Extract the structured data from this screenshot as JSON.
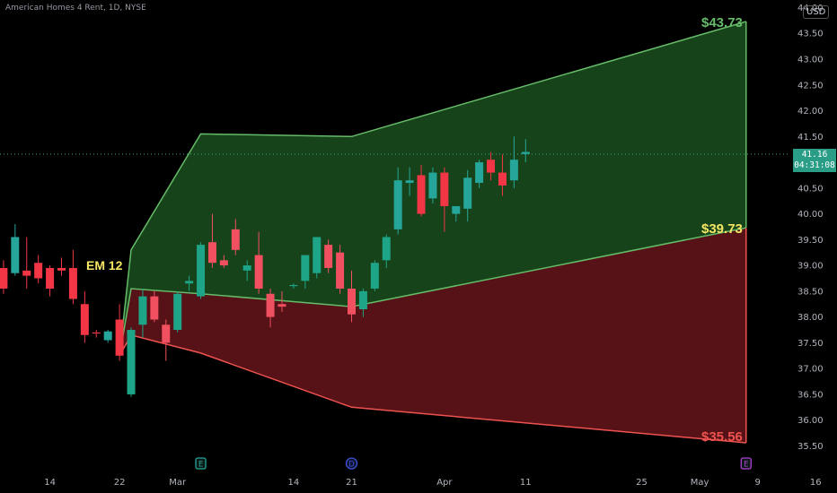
{
  "header": {
    "title": "American Homes 4 Rent, 1D, NYSE",
    "currency": "USD"
  },
  "price_tag": {
    "price": "41.16",
    "countdown": "04:31:08"
  },
  "event_markers": [
    {
      "label": "E",
      "date_index": 24,
      "color": "#26a69a"
    },
    {
      "label": "D",
      "date_index": 37,
      "color": "#3f51d8"
    },
    {
      "label": "E",
      "date_index": 71,
      "color": "#b13fd6"
    }
  ],
  "annotations": [
    {
      "text": "EM 12",
      "color": "#f5e663"
    },
    {
      "text": "$43.73",
      "color": "#66bb6a"
    },
    {
      "text": "$39.73",
      "color": "#f5e663"
    },
    {
      "text": "$35.56",
      "color": "#ef5350"
    }
  ],
  "chart_data": {
    "type": "candlestick",
    "title": "American Homes 4 Rent, 1D, NYSE",
    "y_axis": {
      "range": [
        35.2,
        44.2
      ],
      "ticks": [
        "44.00",
        "43.50",
        "43.00",
        "42.50",
        "42.00",
        "41.50",
        "41.00",
        "40.50",
        "40.00",
        "39.50",
        "39.00",
        "38.50",
        "38.00",
        "37.50",
        "37.00",
        "36.50",
        "36.00",
        "35.50"
      ]
    },
    "x_axis": {
      "range_index": [
        7,
        83
      ],
      "ticks": [
        {
          "label": "14",
          "index": 11
        },
        {
          "label": "22",
          "index": 17
        },
        {
          "label": "Mar",
          "index": 22
        },
        {
          "label": "14",
          "index": 32
        },
        {
          "label": "21",
          "index": 37
        },
        {
          "label": "Apr",
          "index": 45
        },
        {
          "label": "11",
          "index": 52
        },
        {
          "label": "25",
          "index": 62
        },
        {
          "label": "May",
          "index": 67
        },
        {
          "label": "9",
          "index": 72
        },
        {
          "label": "16",
          "index": 77
        }
      ]
    },
    "current_price": 41.16,
    "candles": [
      {
        "i": 7,
        "o": 38.95,
        "h": 39.1,
        "l": 38.45,
        "c": 38.55
      },
      {
        "i": 8,
        "o": 38.85,
        "h": 39.8,
        "l": 38.8,
        "c": 39.55
      },
      {
        "i": 9,
        "o": 38.9,
        "h": 39.55,
        "l": 38.55,
        "c": 38.8
      },
      {
        "i": 10,
        "o": 39.05,
        "h": 39.2,
        "l": 38.65,
        "c": 38.75
      },
      {
        "i": 11,
        "o": 38.95,
        "h": 39.0,
        "l": 38.4,
        "c": 38.55
      },
      {
        "i": 12,
        "o": 38.95,
        "h": 39.15,
        "l": 38.8,
        "c": 38.9
      },
      {
        "i": 13,
        "o": 38.95,
        "h": 39.3,
        "l": 38.25,
        "c": 38.35
      },
      {
        "i": 14,
        "o": 38.25,
        "h": 38.5,
        "l": 37.5,
        "c": 37.65
      },
      {
        "i": 15,
        "o": 37.7,
        "h": 37.75,
        "l": 37.6,
        "c": 37.68
      },
      {
        "i": 16,
        "o": 37.55,
        "h": 37.75,
        "l": 37.5,
        "c": 37.72
      },
      {
        "i": 17,
        "o": 37.95,
        "h": 38.25,
        "l": 37.15,
        "c": 37.25
      },
      {
        "i": 18,
        "o": 36.5,
        "h": 37.8,
        "l": 36.45,
        "c": 37.75
      },
      {
        "i": 19,
        "o": 37.85,
        "h": 38.55,
        "l": 37.6,
        "c": 38.4
      },
      {
        "i": 20,
        "o": 38.4,
        "h": 38.5,
        "l": 37.9,
        "c": 37.95
      },
      {
        "i": 21,
        "o": 37.85,
        "h": 37.95,
        "l": 37.15,
        "c": 37.5
      },
      {
        "i": 22,
        "o": 37.75,
        "h": 38.5,
        "l": 37.7,
        "c": 38.45
      },
      {
        "i": 23,
        "o": 38.65,
        "h": 38.8,
        "l": 38.5,
        "c": 38.7
      },
      {
        "i": 24,
        "o": 38.4,
        "h": 39.45,
        "l": 38.35,
        "c": 39.4
      },
      {
        "i": 25,
        "o": 39.45,
        "h": 40.0,
        "l": 38.95,
        "c": 39.05
      },
      {
        "i": 26,
        "o": 39.1,
        "h": 39.2,
        "l": 38.95,
        "c": 39.0
      },
      {
        "i": 27,
        "o": 39.7,
        "h": 39.9,
        "l": 39.2,
        "c": 39.3
      },
      {
        "i": 28,
        "o": 38.9,
        "h": 39.1,
        "l": 38.7,
        "c": 39.0
      },
      {
        "i": 29,
        "o": 39.2,
        "h": 39.65,
        "l": 38.45,
        "c": 38.55
      },
      {
        "i": 30,
        "o": 38.45,
        "h": 38.55,
        "l": 37.8,
        "c": 38.0
      },
      {
        "i": 31,
        "o": 38.25,
        "h": 38.5,
        "l": 38.1,
        "c": 38.2
      },
      {
        "i": 32,
        "o": 38.6,
        "h": 38.65,
        "l": 38.55,
        "c": 38.62
      },
      {
        "i": 33,
        "o": 38.7,
        "h": 39.2,
        "l": 38.55,
        "c": 39.2
      },
      {
        "i": 34,
        "o": 38.85,
        "h": 39.55,
        "l": 38.75,
        "c": 39.55
      },
      {
        "i": 35,
        "o": 39.4,
        "h": 39.5,
        "l": 38.85,
        "c": 38.95
      },
      {
        "i": 36,
        "o": 39.25,
        "h": 39.4,
        "l": 38.45,
        "c": 38.55
      },
      {
        "i": 37,
        "o": 38.55,
        "h": 38.9,
        "l": 37.9,
        "c": 38.05
      },
      {
        "i": 38,
        "o": 38.15,
        "h": 38.55,
        "l": 38.0,
        "c": 38.5
      },
      {
        "i": 39,
        "o": 38.55,
        "h": 39.1,
        "l": 38.5,
        "c": 39.05
      },
      {
        "i": 40,
        "o": 39.1,
        "h": 39.6,
        "l": 38.95,
        "c": 39.55
      },
      {
        "i": 41,
        "o": 39.7,
        "h": 40.9,
        "l": 39.6,
        "c": 40.65
      },
      {
        "i": 42,
        "o": 40.6,
        "h": 40.9,
        "l": 40.35,
        "c": 40.65
      },
      {
        "i": 43,
        "o": 40.75,
        "h": 40.95,
        "l": 39.95,
        "c": 40.0
      },
      {
        "i": 44,
        "o": 40.3,
        "h": 40.9,
        "l": 40.2,
        "c": 40.8
      },
      {
        "i": 45,
        "o": 40.8,
        "h": 40.9,
        "l": 39.65,
        "c": 40.15
      },
      {
        "i": 46,
        "o": 40.0,
        "h": 40.15,
        "l": 39.85,
        "c": 40.15
      },
      {
        "i": 47,
        "o": 40.1,
        "h": 40.85,
        "l": 39.85,
        "c": 40.7
      },
      {
        "i": 48,
        "o": 40.6,
        "h": 41.05,
        "l": 40.5,
        "c": 41.0
      },
      {
        "i": 49,
        "o": 41.05,
        "h": 41.2,
        "l": 40.65,
        "c": 40.8
      },
      {
        "i": 50,
        "o": 40.8,
        "h": 41.15,
        "l": 40.35,
        "c": 40.55
      },
      {
        "i": 51,
        "o": 40.65,
        "h": 41.5,
        "l": 40.5,
        "c": 41.05
      },
      {
        "i": 52,
        "o": 41.16,
        "h": 41.45,
        "l": 41.0,
        "c": 41.2
      }
    ],
    "upper_band_series": {
      "color": "#66bb6a",
      "points": [
        [
          17,
          37.25
        ],
        [
          18,
          39.3
        ],
        [
          24,
          41.55
        ],
        [
          37,
          41.5
        ],
        [
          71,
          43.73
        ]
      ]
    },
    "middle_band_series": {
      "color": "#66bb6a",
      "points": [
        [
          17,
          37.25
        ],
        [
          18,
          38.55
        ],
        [
          24,
          38.45
        ],
        [
          37,
          38.2
        ],
        [
          71,
          39.73
        ]
      ]
    },
    "lower_band_series": {
      "color": "#ef5350",
      "points": [
        [
          17,
          37.25
        ],
        [
          18,
          37.65
        ],
        [
          24,
          37.3
        ],
        [
          37,
          36.25
        ],
        [
          71,
          35.56
        ]
      ]
    }
  }
}
